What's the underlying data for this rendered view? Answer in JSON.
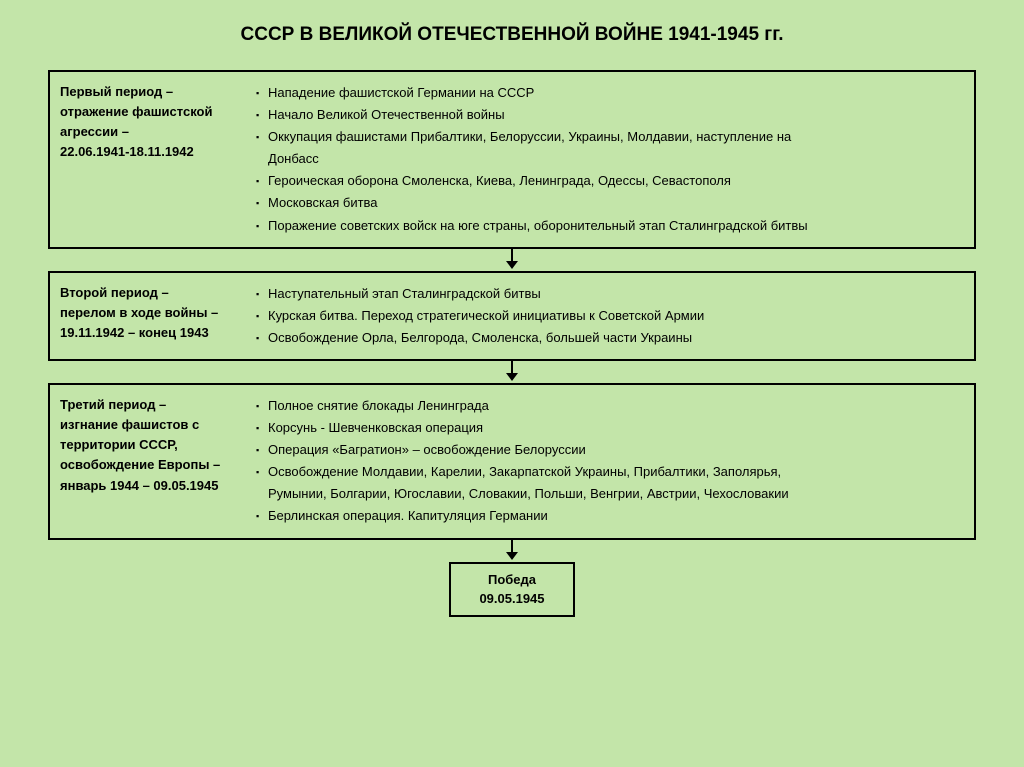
{
  "title": "СССР В ВЕЛИКОЙ ОТЕЧЕСТВЕННОЙ ВОЙНЕ 1941-1945 гг.",
  "period1": {
    "label1": "Первый период –",
    "label2": "отражение фашистской",
    "label3": "агрессии –",
    "label4": "22.06.1941-18.11.1942",
    "e0": "Нападение фашистской Германии на СССР",
    "e1": "Начало Великой Отечественной войны",
    "e2": "Оккупация фашистами Прибалтики, Белоруссии, Украины, Молдавии, наступление на",
    "e2b": "Донбасс",
    "e3": "Героическая оборона Смоленска, Киева, Ленинграда, Одессы, Севастополя",
    "e4": "Московская битва",
    "e5": "Поражение советских войск на юге страны, оборонительный этап Сталинградской битвы"
  },
  "period2": {
    "label1": "Второй период –",
    "label2": "перелом в ходе войны –",
    "label3": "19.11.1942 – конец 1943",
    "e0": "Наступательный этап Сталинградской битвы",
    "e1": "Курская битва. Переход стратегической инициативы к Советской Армии",
    "e2": "Освобождение Орла, Белгорода, Смоленска, большей части Украины"
  },
  "period3": {
    "label1": "Третий период –",
    "label2": "изгнание фашистов с",
    "label3": "территории СССР,",
    "label4": "освобождение Европы –",
    "label5": "январь 1944 – 09.05.1945",
    "e0": "Полное снятие блокады Ленинграда",
    "e1": "Корсунь - Шевченковская операция",
    "e2": "Операция «Багратион» – освобождение Белоруссии",
    "e3": "Освобождение Молдавии, Карелии, Закарпатской Украины, Прибалтики, Заполярья,",
    "e3b": "Румынии, Болгарии, Югославии, Словакии, Польши, Венгрии, Австрии, Чехословакии",
    "e4": "Берлинская операция. Капитуляция Германии"
  },
  "victory": {
    "line1": "Победа",
    "line2": "09.05.1945"
  },
  "colors": {
    "background": "#c3e5a9",
    "border": "#000000",
    "text": "#000000"
  },
  "bullet_glyph": "▪"
}
